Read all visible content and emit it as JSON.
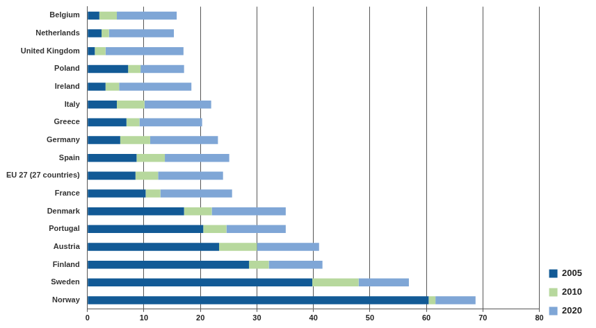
{
  "chart_data": {
    "type": "bar",
    "orientation": "horizontal",
    "stacked": true,
    "grid": true,
    "legend": "lower-right",
    "categories": [
      "Belgium",
      "Netherlands",
      "United Kingdom",
      "Poland",
      "Ireland",
      "Italy",
      "Greece",
      "Germany",
      "Spain",
      "EU 27 (27 countries)",
      "France",
      "Denmark",
      "Portugal",
      "Austria",
      "Finland",
      "Sweden",
      "Norway"
    ],
    "series": [
      {
        "name": "2005",
        "color": "#125a96",
        "values": [
          2.1,
          2.5,
          1.3,
          7.2,
          3.2,
          5.2,
          6.9,
          5.8,
          8.7,
          8.5,
          10.3,
          17.1,
          20.5,
          23.3,
          28.6,
          39.8,
          60.4
        ]
      },
      {
        "name": "2010",
        "color": "#b7d89d",
        "values": [
          3.1,
          1.3,
          1.9,
          2.2,
          2.4,
          4.9,
          2.3,
          5.3,
          5.0,
          4.0,
          2.6,
          4.9,
          4.1,
          6.7,
          3.5,
          8.2,
          1.2
        ]
      },
      {
        "name": "2020",
        "color": "#7fa6d6",
        "values": [
          10.6,
          11.5,
          13.8,
          7.7,
          12.8,
          11.8,
          11.1,
          12.0,
          11.4,
          11.5,
          12.7,
          13.1,
          10.5,
          11.0,
          9.5,
          8.9,
          7.1
        ]
      }
    ],
    "xlim": [
      0,
      80
    ],
    "xticks": [
      0,
      10,
      20,
      30,
      40,
      50,
      60,
      70,
      80
    ]
  }
}
